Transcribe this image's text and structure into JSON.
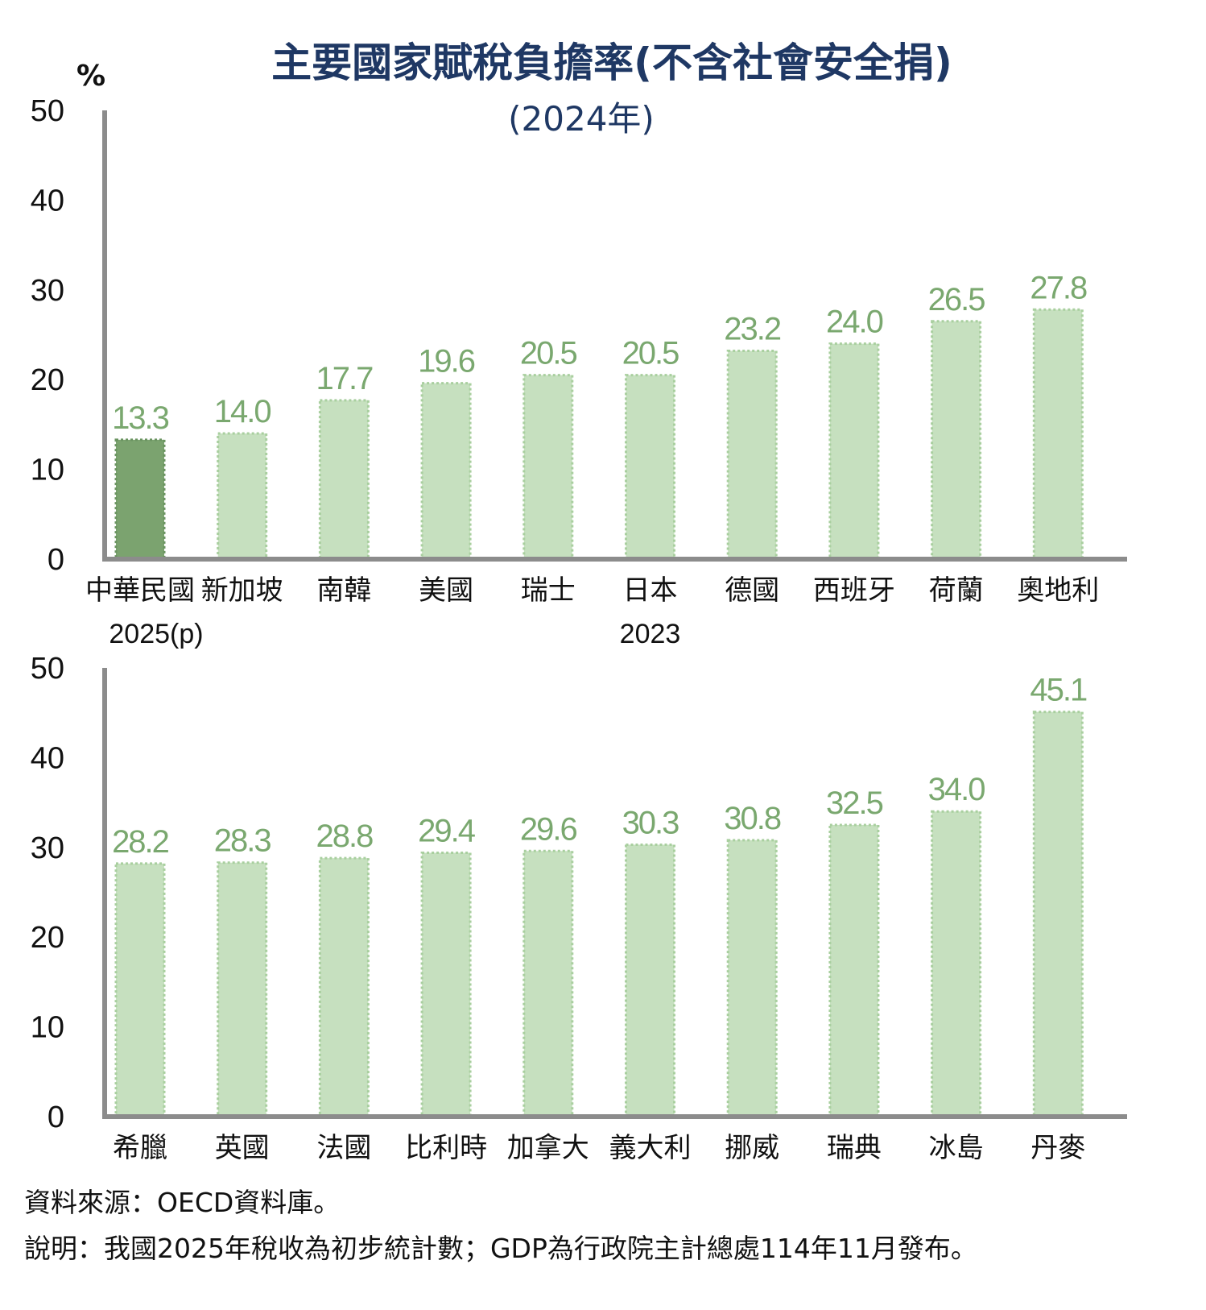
{
  "title": "主要國家賦稅負擔率(不含社會安全捐)",
  "subtitle": "(2024年)",
  "unit": "%",
  "colors": {
    "bar": "#c6e0bf",
    "bar_highlight": "#7ba36f",
    "bar_edge": "#a9cf9f",
    "label": "#7aa86f",
    "axis": "#8c8c8c",
    "title": "#1f3864"
  },
  "chart_data": [
    {
      "type": "bar",
      "panel": "top",
      "ylim": [
        0,
        50
      ],
      "yticks": [
        0,
        10,
        20,
        30,
        40,
        50
      ],
      "categories": [
        "中華民國",
        "新加坡",
        "南韓",
        "美國",
        "瑞士",
        "日本",
        "德國",
        "西班牙",
        "荷蘭",
        "奧地利"
      ],
      "values": [
        13.3,
        14.0,
        17.7,
        19.6,
        20.5,
        20.5,
        23.2,
        24.0,
        26.5,
        27.8
      ],
      "value_labels": [
        "13.3",
        "14.0",
        "17.7",
        "19.6",
        "20.5",
        "20.5",
        "23.2",
        "24.0",
        "26.5",
        "27.8"
      ],
      "highlight": [
        0
      ],
      "notes": [
        {
          "index": 0,
          "text": "2025(p)"
        },
        {
          "index": 5,
          "text": "2023"
        }
      ],
      "grid": false,
      "legend": "none"
    },
    {
      "type": "bar",
      "panel": "bottom",
      "ylim": [
        0,
        50
      ],
      "yticks": [
        0,
        10,
        20,
        30,
        40,
        50
      ],
      "categories": [
        "希臘",
        "英國",
        "法國",
        "比利時",
        "加拿大",
        "義大利",
        "挪威",
        "瑞典",
        "冰島",
        "丹麥"
      ],
      "values": [
        28.2,
        28.3,
        28.8,
        29.4,
        29.6,
        30.3,
        30.8,
        32.5,
        34.0,
        45.1
      ],
      "value_labels": [
        "28.2",
        "28.3",
        "28.8",
        "29.4",
        "29.6",
        "30.3",
        "30.8",
        "32.5",
        "34.0",
        "45.1"
      ],
      "highlight": [],
      "notes": [],
      "grid": false,
      "legend": "none"
    }
  ],
  "footer": {
    "source": "資料來源：OECD資料庫。",
    "note": "說明：我國2025年稅收為初步統計數；GDP為行政院主計總處114年11月發布。"
  }
}
